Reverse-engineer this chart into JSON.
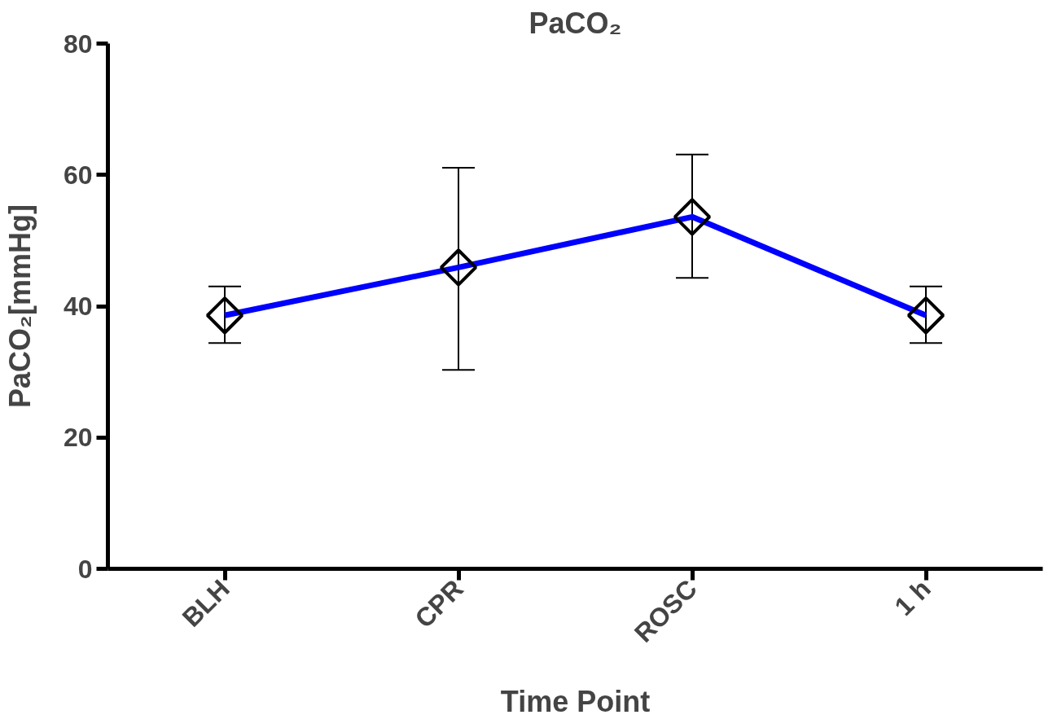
{
  "chart_data": {
    "type": "line",
    "title": "PaCO₂",
    "xlabel": "Time Point",
    "ylabel": "PaCO₂[mmHg]",
    "categories": [
      "BLH",
      "CPR",
      "ROSC",
      "1 h"
    ],
    "color": "#0000ff",
    "values": [
      38.6,
      45.9,
      53.6,
      38.6
    ],
    "errors": [
      [
        34.4,
        43.0
      ],
      [
        30.3,
        61.1
      ],
      [
        44.3,
        63.1
      ],
      [
        34.4,
        43.0
      ]
    ],
    "ylim": [
      0,
      80
    ],
    "yticks": [
      0,
      20,
      40,
      60,
      80
    ],
    "marker": "diamond",
    "grid": false
  }
}
